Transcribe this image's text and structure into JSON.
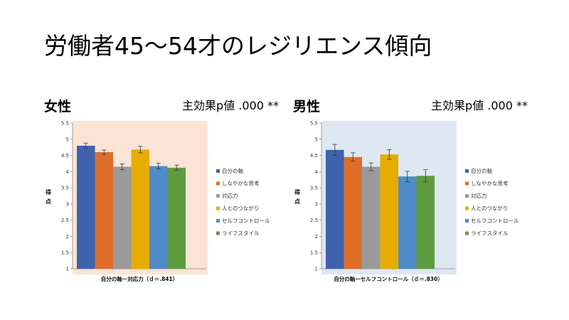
{
  "slide": {
    "title": "労働者45〜54才のレジリエンス傾向"
  },
  "panels": [
    {
      "gender": "女性",
      "effect": "主効果p値 .000 **"
    },
    {
      "gender": "男性",
      "effect": "主効果p値 .000 **"
    }
  ],
  "chart_data": [
    {
      "type": "bar",
      "title": "女性",
      "background": "#fbe4d6",
      "categories": [
        "自分の軸",
        "しなやかな思考",
        "対応力",
        "人とのつながり",
        "セルフコントロール",
        "ライフスタイル"
      ],
      "colors": [
        "#3f62ad",
        "#dd6f2a",
        "#9a9a9a",
        "#e6ac00",
        "#4f8bc7",
        "#5e9b3e"
      ],
      "values": [
        4.8,
        4.6,
        4.15,
        4.68,
        4.17,
        4.12
      ],
      "errors": [
        0.08,
        0.07,
        0.09,
        0.1,
        0.09,
        0.08
      ],
      "ylim": [
        1,
        5.5
      ],
      "yticks": [
        "1",
        "1.5",
        "2",
        "2.5",
        "3",
        "3.5",
        "4",
        "4.5",
        "5",
        "5.5"
      ],
      "ylabel_chars": [
        "得",
        "点"
      ],
      "xlabel": "自分の軸ー対応力（ｄ＝.841）",
      "legend": [
        "自分の軸",
        "しなやかな思考",
        "対応力",
        "人とのつながり",
        "セルフコントロール",
        "ライフスタイル"
      ]
    },
    {
      "type": "bar",
      "title": "男性",
      "background": "#dde8f3",
      "categories": [
        "自分の軸",
        "しなやかな思考",
        "対応力",
        "人とのつながり",
        "セルフコントロール",
        "ライフスタイル"
      ],
      "colors": [
        "#3f62ad",
        "#dd6f2a",
        "#9a9a9a",
        "#e6ac00",
        "#4f8bc7",
        "#5e9b3e"
      ],
      "values": [
        4.67,
        4.45,
        4.15,
        4.53,
        3.85,
        3.87
      ],
      "errors": [
        0.17,
        0.13,
        0.12,
        0.15,
        0.16,
        0.19
      ],
      "ylim": [
        1,
        5.5
      ],
      "yticks": [
        "1",
        "1.5",
        "2",
        "2.5",
        "3",
        "3.5",
        "4",
        "4.5",
        "5",
        "5.5"
      ],
      "ylabel_chars": [
        "得",
        "点"
      ],
      "xlabel": "自分の軸ーセルフコントロール（ｄ＝.830）",
      "legend": [
        "自分の軸",
        "しなやかな思考",
        "対応力",
        "人とのつながり",
        "セルフコントロール",
        "ライフスタイル"
      ]
    }
  ]
}
